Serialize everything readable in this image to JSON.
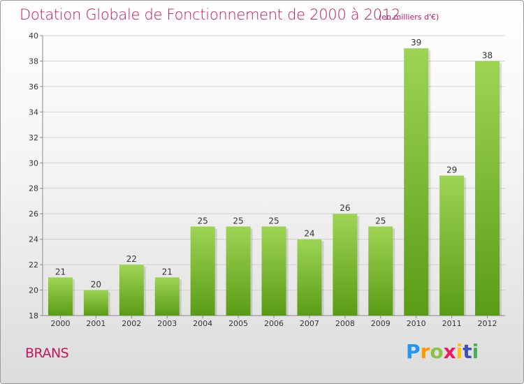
{
  "title": "Dotation Globale de Fonctionnement de 2000 à 2012",
  "subtitle": "(en milliers d'€)",
  "commune": "BRANS",
  "logo": {
    "letters": [
      "P",
      "r",
      "o",
      "x",
      "i",
      "t",
      "i"
    ],
    "colors": [
      "#2196f3",
      "#ff9800",
      "#8bc34a",
      "#e91e63",
      "#ffc107",
      "#3f51b5",
      "#4caf50"
    ]
  },
  "colors": {
    "accent": "#c2185b",
    "bar_light": "#9ed454",
    "bar_dark": "#5a9c16"
  },
  "chart_data": {
    "type": "bar",
    "title": "Dotation Globale de Fonctionnement de 2000 à 2012",
    "subtitle": "(en milliers d'€)",
    "categories": [
      "2000",
      "2001",
      "2002",
      "2003",
      "2004",
      "2005",
      "2006",
      "2007",
      "2008",
      "2009",
      "2010",
      "2011",
      "2012"
    ],
    "values": [
      21,
      20,
      22,
      21,
      25,
      25,
      25,
      24,
      26,
      25,
      39,
      29,
      38
    ],
    "ylim": [
      18,
      40
    ],
    "yticks": [
      18,
      20,
      22,
      24,
      26,
      28,
      30,
      32,
      34,
      36,
      38,
      40
    ],
    "grid": true
  }
}
